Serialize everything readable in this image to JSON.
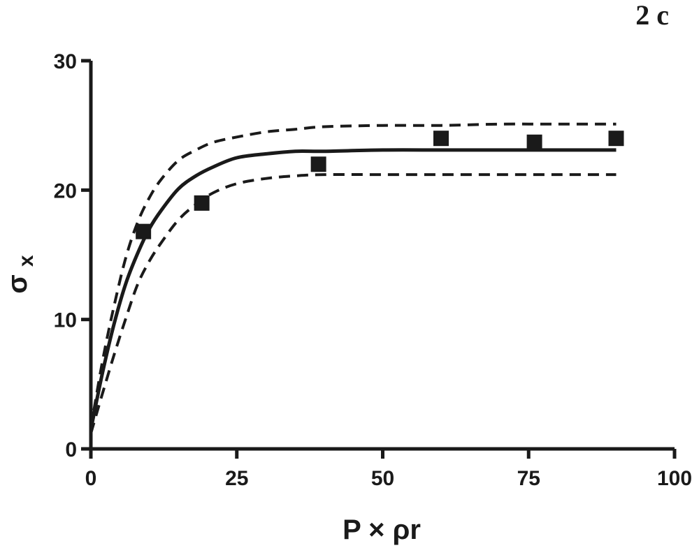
{
  "chart_data": {
    "type": "scatter",
    "panel_label": "2 c",
    "xlabel": "P × ρr",
    "ylabel_main": "σ",
    "ylabel_sub": "x",
    "xlim": [
      0,
      100
    ],
    "ylim": [
      0,
      30
    ],
    "xticks": [
      0,
      25,
      50,
      75,
      100
    ],
    "yticks": [
      0,
      10,
      20,
      30
    ],
    "grid": false,
    "legend": "none",
    "colors": {
      "ink": "#1a1a1a"
    },
    "series": [
      {
        "kind": "points",
        "marker": "square",
        "x": [
          9,
          19,
          39,
          60,
          76,
          90
        ],
        "y": [
          16.8,
          19.0,
          22.0,
          24.0,
          23.7,
          24.0
        ]
      },
      {
        "kind": "fit",
        "style": "solid",
        "x": [
          0,
          2,
          4,
          6,
          8,
          10,
          12,
          15,
          18,
          21,
          25,
          30,
          35,
          40,
          50,
          60,
          70,
          80,
          90
        ],
        "y": [
          1.5,
          5.9,
          9.7,
          12.8,
          15.1,
          17.0,
          18.4,
          20.1,
          21.1,
          21.8,
          22.5,
          22.8,
          23.0,
          23.0,
          23.1,
          23.1,
          23.1,
          23.1,
          23.1
        ]
      },
      {
        "kind": "band",
        "style": "dashed",
        "x": [
          0,
          2,
          4,
          6,
          8,
          10,
          12,
          15,
          18,
          21,
          25,
          30,
          35,
          40,
          50,
          60,
          70,
          80,
          90
        ],
        "y": [
          1.6,
          6.8,
          11.1,
          14.8,
          17.5,
          19.4,
          20.8,
          22.3,
          23.1,
          23.7,
          24.1,
          24.5,
          24.7,
          24.9,
          25.0,
          25.0,
          25.1,
          25.1,
          25.1
        ]
      },
      {
        "kind": "band",
        "style": "dashed",
        "x": [
          0,
          2,
          4,
          6,
          8,
          10,
          12,
          15,
          18,
          21,
          25,
          30,
          35,
          40,
          50,
          60,
          70,
          80,
          90
        ],
        "y": [
          1.2,
          4.3,
          7.3,
          10.1,
          12.7,
          14.5,
          15.9,
          17.7,
          18.9,
          19.8,
          20.5,
          20.9,
          21.1,
          21.2,
          21.2,
          21.2,
          21.2,
          21.2,
          21.2
        ]
      }
    ]
  }
}
